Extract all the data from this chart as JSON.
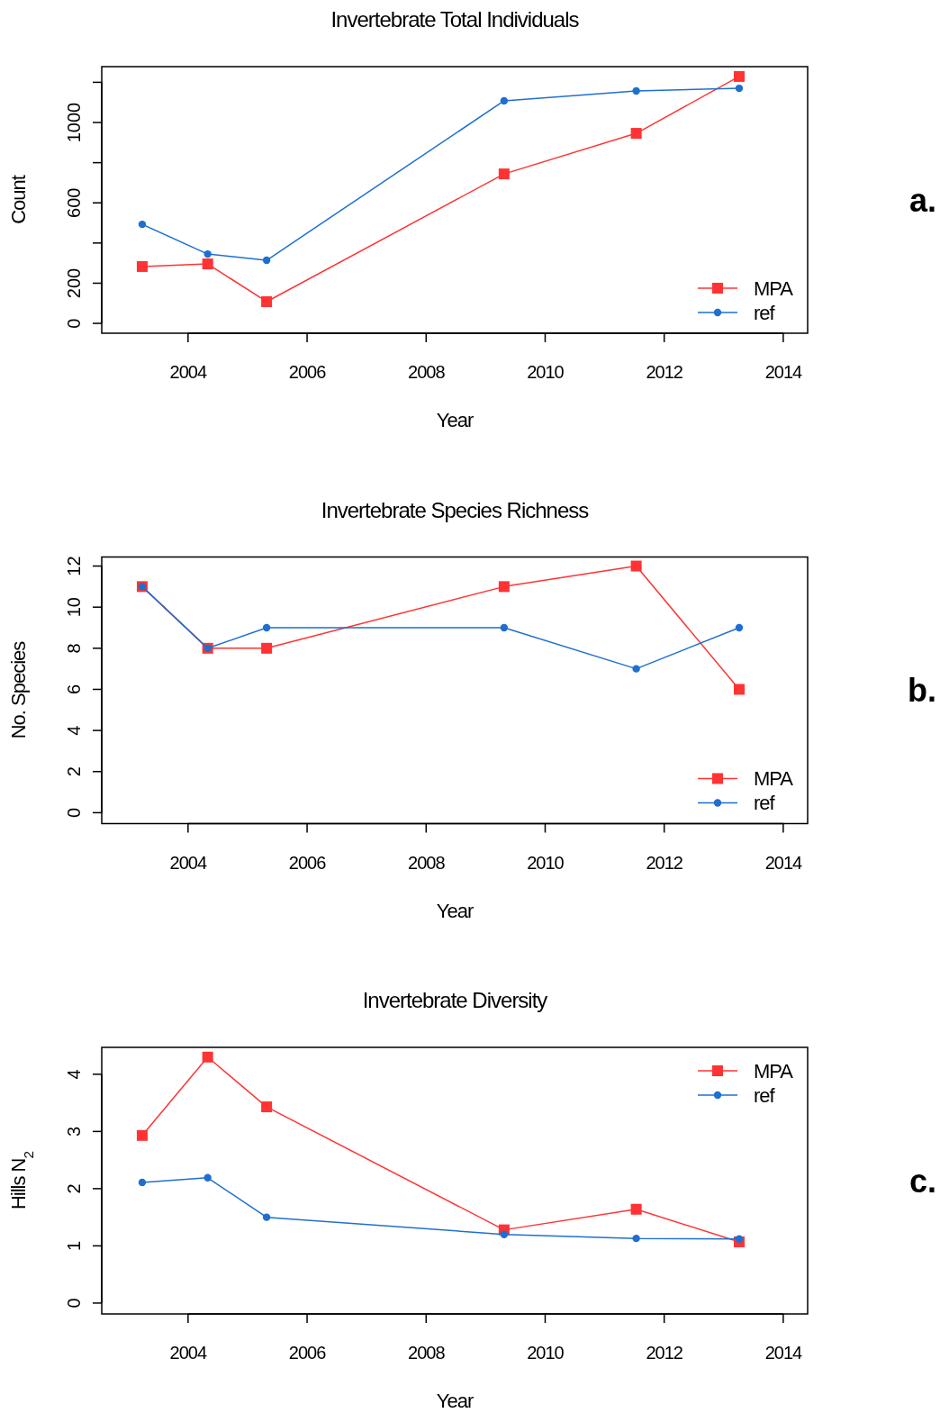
{
  "chart_data": [
    {
      "type": "line",
      "title": "Invertebrate Total Individuals",
      "xlabel": "Year",
      "ylabel": "Count",
      "x": [
        2003.23,
        2004.33,
        2005.32,
        2009.31,
        2011.53,
        2013.26
      ],
      "series": [
        {
          "name": "MPA",
          "color": "#ff3333",
          "marker": "square",
          "values": [
            283,
            296,
            108,
            744,
            946,
            1229
          ]
        },
        {
          "name": "ref",
          "color": "#1f6fd0",
          "marker": "circle",
          "values": [
            493,
            345,
            314,
            1108,
            1157,
            1170
          ]
        }
      ],
      "xlim": [
        2002.55,
        2014.41
      ],
      "xticks": [
        2004,
        2006,
        2008,
        2010,
        2012,
        2014
      ],
      "ylim": [
        -49,
        1278
      ],
      "yticks": [
        0,
        200,
        {
          "value": 400,
          "label": null
        },
        600,
        {
          "value": 800,
          "label": null
        },
        1000,
        {
          "value": 1200,
          "label": null
        }
      ],
      "legend": "bottom right",
      "line_style": "solid",
      "grid": false,
      "annotations": [
        "a."
      ]
    },
    {
      "type": "line",
      "title": "Invertebrate Species Richness",
      "xlabel": "Year",
      "ylabel": "No. Species",
      "x": [
        2003.23,
        2004.33,
        2005.32,
        2009.31,
        2011.53,
        2013.26
      ],
      "series": [
        {
          "name": "MPA",
          "color": "#ff3333",
          "marker": "square",
          "values": [
            11,
            8,
            8,
            11,
            12,
            6
          ]
        },
        {
          "name": "ref",
          "color": "#1f6fd0",
          "marker": "circle",
          "values": [
            11,
            8,
            9,
            9,
            7,
            9
          ]
        }
      ],
      "xlim": [
        2002.55,
        2014.41
      ],
      "xticks": [
        2004,
        2006,
        2008,
        2010,
        2012,
        2014
      ],
      "ylim": [
        -0.53,
        12.44
      ],
      "yticks": [
        0,
        2,
        4,
        6,
        8,
        10,
        12
      ],
      "legend": "bottom right",
      "line_style": "solid",
      "grid": false,
      "annotations": [
        "b."
      ]
    },
    {
      "type": "line",
      "title": "Invertebrate Diversity",
      "xlabel": "Year",
      "ylabel": "Hills N$_{2}$",
      "x": [
        2003.23,
        2004.33,
        2005.32,
        2009.31,
        2011.53,
        2013.26
      ],
      "series": [
        {
          "name": "MPA",
          "color": "#ff3333",
          "marker": "square",
          "values": [
            2.93,
            4.3,
            3.43,
            1.28,
            1.64,
            1.07
          ]
        },
        {
          "name": "ref",
          "color": "#1f6fd0",
          "marker": "circle",
          "values": [
            2.11,
            2.19,
            1.5,
            1.2,
            1.13,
            1.12
          ]
        }
      ],
      "xlim": [
        2002.55,
        2014.41
      ],
      "xticks": [
        2004,
        2006,
        2008,
        2010,
        2012,
        2014
      ],
      "ylim": [
        -0.19,
        4.47
      ],
      "yticks": [
        0,
        1,
        2,
        3,
        4
      ],
      "legend": "top right",
      "line_style": "solid",
      "grid": false,
      "annotations": [
        "c."
      ]
    }
  ]
}
